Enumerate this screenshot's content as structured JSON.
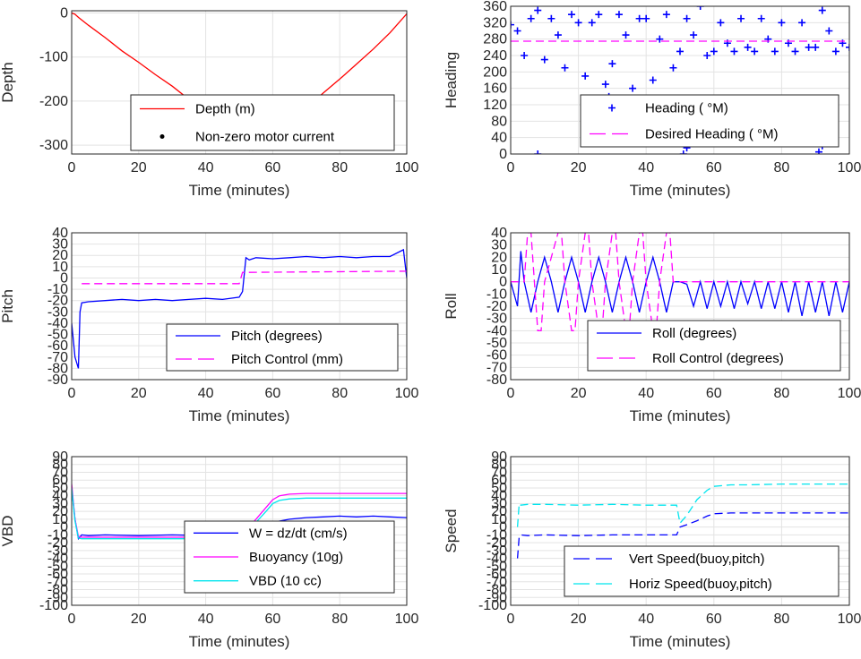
{
  "chart_data": [
    {
      "id": "depth",
      "type": "line",
      "xlabel": "Time (minutes)",
      "ylabel": "Depth",
      "xlim": [
        0,
        100
      ],
      "ylim": [
        -320,
        5
      ],
      "xticks": [
        0,
        20,
        40,
        60,
        80,
        100
      ],
      "yticks": [
        -300,
        -200,
        -100,
        0
      ],
      "grid": true,
      "legend": "bottom-center",
      "series": [
        {
          "name": "Depth (m)",
          "color": "#ff0000",
          "style": "solid",
          "x": [
            0,
            1,
            2,
            5,
            10,
            15,
            20,
            25,
            30,
            35,
            40,
            45,
            48,
            50,
            52,
            54,
            56,
            58,
            60,
            65,
            70,
            75,
            80,
            85,
            90,
            95,
            100
          ],
          "y": [
            0,
            -3,
            -10,
            -28,
            -56,
            -86,
            -112,
            -140,
            -166,
            -196,
            -225,
            -260,
            -285,
            -298,
            -305,
            -308,
            -305,
            -300,
            -285,
            -252,
            -216,
            -182,
            -150,
            -116,
            -82,
            -45,
            -2
          ]
        },
        {
          "name": "Non-zero motor current",
          "color": "#000000",
          "style": "dots",
          "x": [
            48,
            49,
            50,
            51,
            52,
            53,
            54,
            55,
            56,
            57,
            58
          ],
          "y": [
            -296,
            -299,
            -302,
            -304,
            -306,
            -307,
            -307,
            -306,
            -304,
            -302,
            -299
          ]
        }
      ]
    },
    {
      "id": "heading",
      "type": "scatter",
      "xlabel": "Time (minutes)",
      "ylabel": "Heading",
      "xlim": [
        0,
        100
      ],
      "ylim": [
        0,
        360
      ],
      "xticks": [
        0,
        20,
        40,
        60,
        80,
        100
      ],
      "yticks": [
        0,
        40,
        80,
        120,
        160,
        200,
        240,
        280,
        320,
        360
      ],
      "grid": true,
      "legend": "bottom-right",
      "series": [
        {
          "name": "Heading ( °M)",
          "color": "#0000ff",
          "style": "plus",
          "x": [
            0,
            2,
            4,
            6,
            8,
            10,
            12,
            14,
            16,
            18,
            20,
            22,
            24,
            26,
            28,
            29,
            30,
            32,
            34,
            36,
            38,
            40,
            42,
            44,
            46,
            48,
            50,
            52,
            54,
            56,
            58,
            60,
            62,
            64,
            66,
            68,
            70,
            72,
            74,
            76,
            78,
            80,
            82,
            84,
            86,
            88,
            90,
            92,
            94,
            96,
            98,
            100
          ],
          "y": [
            315,
            300,
            240,
            330,
            350,
            230,
            330,
            290,
            210,
            340,
            320,
            190,
            320,
            340,
            170,
            140,
            220,
            340,
            290,
            160,
            330,
            330,
            180,
            280,
            340,
            210,
            250,
            330,
            290,
            360,
            240,
            250,
            320,
            270,
            250,
            330,
            260,
            250,
            330,
            280,
            250,
            320,
            270,
            250,
            320,
            260,
            260,
            350,
            300,
            250,
            270,
            260
          ]
        },
        {
          "name": "",
          "color": "#0000ff",
          "style": "plus",
          "x": [
            8,
            51,
            52,
            53,
            54,
            91,
            92,
            93
          ],
          "y": [
            0,
            0,
            15,
            40,
            70,
            5,
            20,
            40
          ]
        },
        {
          "name": "Desired Heading ( °M)",
          "color": "#ff00ff",
          "style": "dash",
          "x": [
            0,
            100
          ],
          "y": [
            275,
            275
          ]
        }
      ]
    },
    {
      "id": "pitch",
      "type": "line",
      "xlabel": "Time (minutes)",
      "ylabel": "Pitch",
      "xlim": [
        0,
        100
      ],
      "ylim": [
        -90,
        40
      ],
      "xticks": [
        0,
        20,
        40,
        60,
        80,
        100
      ],
      "yticks": [
        -90,
        -80,
        -70,
        -60,
        -50,
        -40,
        -30,
        -20,
        -10,
        0,
        10,
        20,
        30,
        40
      ],
      "grid": true,
      "legend": "bottom-right",
      "series": [
        {
          "name": "Pitch (degrees)",
          "color": "#0000ff",
          "style": "solid",
          "x": [
            0,
            1,
            2,
            2.5,
            3,
            5,
            10,
            15,
            20,
            25,
            30,
            35,
            40,
            45,
            50,
            51,
            52,
            53,
            55,
            60,
            65,
            70,
            75,
            80,
            85,
            90,
            95,
            99,
            100
          ],
          "y": [
            -40,
            -70,
            -80,
            -30,
            -22,
            -21,
            -20,
            -19,
            -20,
            -19,
            -20,
            -19,
            -18,
            -19,
            -17,
            -12,
            18,
            16,
            18,
            17,
            18,
            19,
            18,
            19,
            18,
            19,
            19,
            25,
            0
          ]
        },
        {
          "name": "Pitch Control (mm)",
          "color": "#ff00ff",
          "style": "dash",
          "x": [
            3,
            50,
            51,
            52,
            100
          ],
          "y": [
            -5,
            -5,
            5,
            5,
            6
          ]
        }
      ]
    },
    {
      "id": "roll",
      "type": "line",
      "xlabel": "Time (minutes)",
      "ylabel": "Roll",
      "xlim": [
        0,
        100
      ],
      "ylim": [
        -80,
        40
      ],
      "xticks": [
        0,
        20,
        40,
        60,
        80,
        100
      ],
      "yticks": [
        -80,
        -70,
        -60,
        -50,
        -40,
        -30,
        -20,
        -10,
        0,
        10,
        20,
        30,
        40
      ],
      "grid": true,
      "legend": "bottom-right",
      "series": [
        {
          "name": "Roll (degrees)",
          "color": "#0000ff",
          "style": "solid",
          "x": [
            0,
            2,
            3,
            4,
            6,
            8,
            10,
            12,
            14,
            16,
            18,
            20,
            22,
            24,
            26,
            28,
            30,
            32,
            34,
            36,
            38,
            40,
            42,
            44,
            46,
            48,
            50,
            52,
            54,
            56,
            58,
            60,
            62,
            64,
            66,
            68,
            70,
            72,
            74,
            76,
            78,
            80,
            82,
            84,
            86,
            88,
            90,
            92,
            94,
            96,
            98,
            100
          ],
          "y": [
            0,
            -20,
            25,
            0,
            -25,
            0,
            20,
            0,
            -25,
            0,
            20,
            0,
            -25,
            0,
            20,
            0,
            -25,
            0,
            20,
            0,
            -25,
            0,
            20,
            0,
            -25,
            0,
            0,
            -2,
            -20,
            0,
            -22,
            0,
            -20,
            0,
            -22,
            0,
            -18,
            0,
            -22,
            0,
            -22,
            0,
            -25,
            0,
            -28,
            0,
            -25,
            0,
            -28,
            0,
            -25,
            0
          ]
        },
        {
          "name": "Roll Control (degrees)",
          "color": "#ff00ff",
          "style": "dash",
          "x": [
            0,
            4,
            5,
            6,
            8,
            9,
            10,
            14,
            15,
            16,
            18,
            19,
            20,
            22,
            23,
            24,
            26,
            27,
            28,
            30,
            31,
            32,
            34,
            35,
            36,
            38,
            39,
            40,
            42,
            43,
            44,
            46,
            47,
            48,
            50,
            100
          ],
          "y": [
            0,
            0,
            40,
            40,
            -40,
            -40,
            0,
            40,
            40,
            0,
            -40,
            -40,
            0,
            40,
            40,
            0,
            -40,
            -40,
            0,
            40,
            40,
            0,
            -40,
            -40,
            0,
            40,
            40,
            0,
            -40,
            -40,
            0,
            40,
            40,
            0,
            0,
            0
          ]
        }
      ]
    },
    {
      "id": "vbd",
      "type": "line",
      "xlabel": "Time (minutes)",
      "ylabel": "VBD",
      "xlim": [
        0,
        100
      ],
      "ylim": [
        -100,
        90
      ],
      "xticks": [
        0,
        20,
        40,
        60,
        80,
        100
      ],
      "yticks": [
        -100,
        -90,
        -80,
        -70,
        -60,
        -50,
        -40,
        -30,
        -20,
        -10,
        0,
        10,
        20,
        30,
        40,
        50,
        60,
        70,
        80,
        90
      ],
      "grid": true,
      "legend": "bottom-center",
      "series": [
        {
          "name": "W = dz/dt (cm/s)",
          "color": "#0000ff",
          "style": "solid",
          "x": [
            0,
            1,
            2,
            3,
            5,
            10,
            20,
            30,
            40,
            48,
            50,
            52,
            55,
            60,
            65,
            70,
            75,
            80,
            85,
            90,
            95,
            100
          ],
          "y": [
            50,
            10,
            -15,
            -10,
            -11,
            -10,
            -11,
            -10,
            -11,
            -10,
            -11,
            -8,
            -3,
            6,
            10,
            12,
            13,
            14,
            13,
            14,
            13,
            12
          ]
        },
        {
          "name": "Buoyancy (10g)",
          "color": "#ff00ff",
          "style": "solid",
          "x": [
            0,
            1,
            2,
            3,
            50,
            55,
            58,
            60,
            62,
            65,
            70,
            80,
            90,
            100
          ],
          "y": [
            55,
            10,
            -12,
            -13,
            -13,
            10,
            25,
            35,
            40,
            42,
            43,
            43,
            43,
            43
          ]
        },
        {
          "name": "VBD (10 cc)",
          "color": "#00e5ee",
          "style": "solid",
          "x": [
            0,
            1,
            2,
            3,
            50,
            55,
            58,
            60,
            62,
            65,
            70,
            80,
            90,
            100
          ],
          "y": [
            50,
            8,
            -14,
            -15,
            -15,
            6,
            20,
            30,
            34,
            36,
            37,
            37,
            37,
            37
          ]
        }
      ]
    },
    {
      "id": "speed",
      "type": "line",
      "xlabel": "Time (minutes)",
      "ylabel": "Speed",
      "xlim": [
        0,
        100
      ],
      "ylim": [
        -100,
        90
      ],
      "xticks": [
        0,
        20,
        40,
        60,
        80,
        100
      ],
      "yticks": [
        -100,
        -90,
        -80,
        -70,
        -60,
        -50,
        -40,
        -30,
        -20,
        -10,
        0,
        10,
        20,
        30,
        40,
        50,
        60,
        70,
        80,
        90
      ],
      "grid": true,
      "legend": "bottom-right",
      "series": [
        {
          "name": "Vert Speed(buoy,pitch)",
          "color": "#0000ff",
          "style": "dash",
          "x": [
            2,
            2.5,
            3,
            5,
            10,
            20,
            30,
            40,
            49,
            50,
            52,
            55,
            58,
            60,
            65,
            70,
            80,
            90,
            100
          ],
          "y": [
            -40,
            -12,
            -10,
            -11,
            -10,
            -11,
            -10,
            -10,
            -10,
            0,
            3,
            8,
            14,
            17,
            18,
            18,
            18,
            18,
            18
          ]
        },
        {
          "name": "Horiz Speed(buoy,pitch)",
          "color": "#00e5ee",
          "style": "dash",
          "x": [
            2,
            2.5,
            3,
            5,
            10,
            20,
            30,
            40,
            49,
            50,
            52,
            55,
            58,
            60,
            65,
            70,
            80,
            90,
            100
          ],
          "y": [
            0,
            30,
            28,
            29,
            29,
            28,
            29,
            28,
            28,
            5,
            15,
            35,
            47,
            52,
            54,
            54,
            55,
            55,
            55
          ]
        }
      ]
    }
  ]
}
